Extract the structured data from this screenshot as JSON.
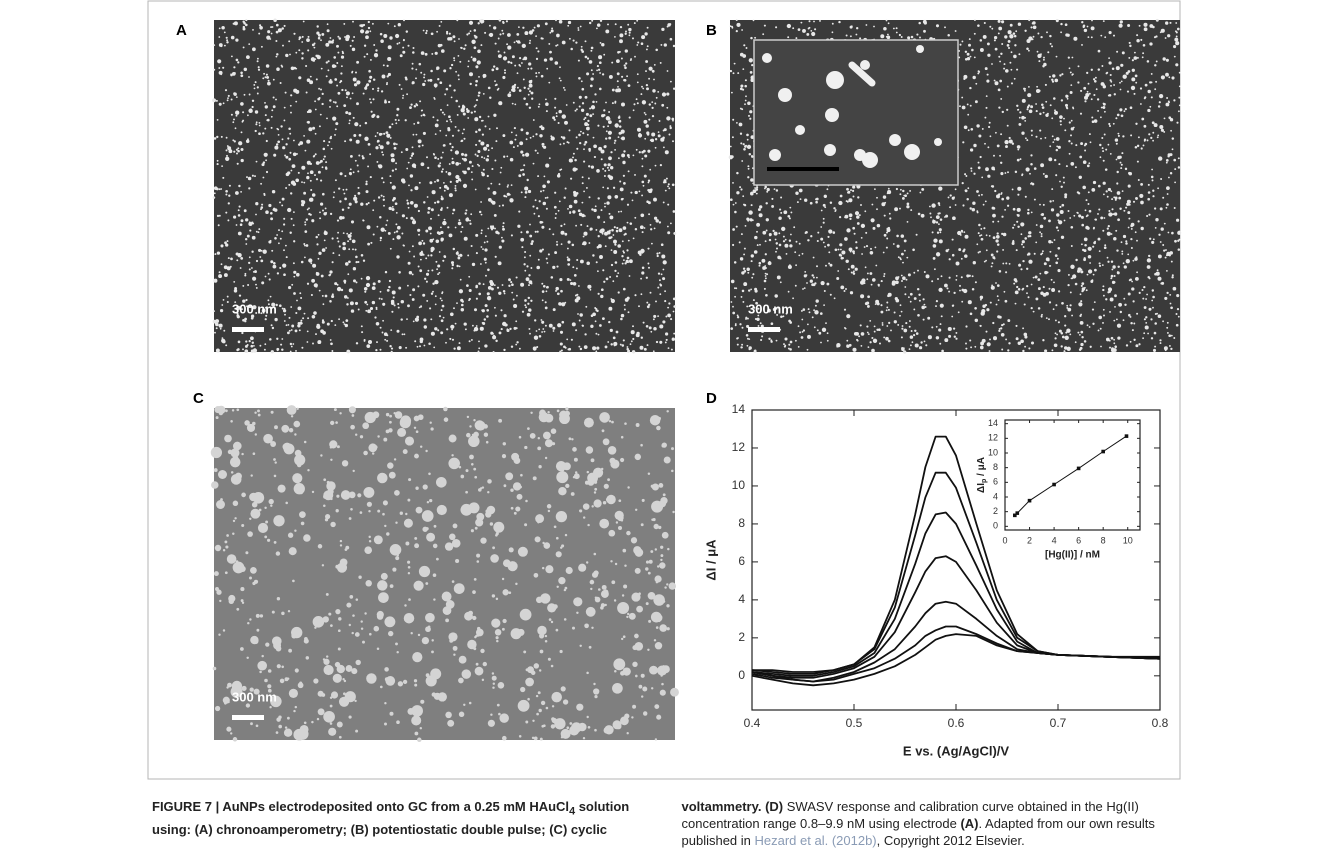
{
  "figure": {
    "panels": {
      "A": {
        "label": "A",
        "scale_label": "300 nm"
      },
      "B": {
        "label": "B",
        "scale_label": "300 nm"
      },
      "C": {
        "label": "C",
        "scale_label": "300 nm"
      },
      "D": {
        "label": "D"
      }
    }
  },
  "chart_data": [
    {
      "type": "line",
      "xlabel": "E vs. (Ag/AgCl)/V",
      "ylabel": "ΔI / μA",
      "x": [
        0.4,
        0.42,
        0.44,
        0.46,
        0.48,
        0.5,
        0.52,
        0.54,
        0.56,
        0.57,
        0.58,
        0.59,
        0.6,
        0.62,
        0.64,
        0.66,
        0.68,
        0.7,
        0.75,
        0.8
      ],
      "xlim": [
        0.4,
        0.8
      ],
      "xticks": [
        0.4,
        0.5,
        0.6,
        0.7,
        0.8
      ],
      "ylim": [
        -1.8,
        14
      ],
      "yticks": [
        0,
        2,
        4,
        6,
        8,
        10,
        12,
        14
      ],
      "grid": false,
      "series": [
        {
          "color": "#111111",
          "values": [
            0.3,
            0.3,
            0.2,
            0.2,
            0.3,
            0.6,
            1.5,
            4.0,
            8.5,
            11.0,
            12.6,
            12.6,
            11.6,
            8.0,
            4.5,
            2.2,
            1.3,
            1.1,
            1.0,
            0.9
          ]
        },
        {
          "color": "#111111",
          "values": [
            0.3,
            0.2,
            0.1,
            0.1,
            0.3,
            0.6,
            1.4,
            3.6,
            7.4,
            9.4,
            10.7,
            10.7,
            9.9,
            7.0,
            4.0,
            2.0,
            1.3,
            1.1,
            1.0,
            0.9
          ]
        },
        {
          "color": "#111111",
          "values": [
            0.2,
            0.1,
            0,
            0,
            0.2,
            0.5,
            1.2,
            3.0,
            5.9,
            7.5,
            8.5,
            8.6,
            8.0,
            5.8,
            3.5,
            1.8,
            1.2,
            1.1,
            1.0,
            0.9
          ]
        },
        {
          "color": "#111111",
          "values": [
            0.2,
            0,
            -0.1,
            -0.1,
            0.1,
            0.4,
            1.0,
            2.3,
            4.4,
            5.5,
            6.2,
            6.3,
            6.0,
            4.5,
            2.8,
            1.6,
            1.2,
            1.1,
            1.0,
            0.9
          ]
        },
        {
          "color": "#111111",
          "values": [
            0.1,
            -0.1,
            -0.2,
            -0.3,
            -0.1,
            0.2,
            0.7,
            1.4,
            2.6,
            3.3,
            3.8,
            3.9,
            3.8,
            3.0,
            2.1,
            1.4,
            1.2,
            1.1,
            1.0,
            0.9
          ]
        },
        {
          "color": "#111111",
          "values": [
            0.2,
            0,
            -0.2,
            -0.3,
            -0.2,
            0.1,
            0.4,
            0.9,
            1.6,
            2.1,
            2.4,
            2.6,
            2.6,
            2.2,
            1.7,
            1.3,
            1.2,
            1.1,
            1.0,
            0.9
          ]
        },
        {
          "color": "#111111",
          "values": [
            0,
            -0.2,
            -0.4,
            -0.5,
            -0.4,
            -0.2,
            0.1,
            0.5,
            1.1,
            1.5,
            1.9,
            2.1,
            2.2,
            2.1,
            1.6,
            1.3,
            1.2,
            1.1,
            1.0,
            1.0
          ]
        }
      ]
    },
    {
      "type": "scatter",
      "xlabel": "[Hg(II)] / nM",
      "ylabel_main": "ΔI",
      "ylabel_sub": "p",
      "ylabel_unit": " / μA",
      "x": [
        0.8,
        1,
        2,
        4,
        6,
        8,
        9.9
      ],
      "values": [
        1.5,
        1.8,
        3.5,
        5.7,
        7.9,
        10.2,
        12.3
      ],
      "color": "#111111",
      "xlim": [
        0,
        11
      ],
      "xticks": [
        0,
        2,
        4,
        6,
        8,
        10
      ],
      "ylim": [
        -0.5,
        14.5
      ],
      "yticks": [
        0,
        2,
        4,
        6,
        8,
        10,
        12,
        14
      ],
      "grid": false
    }
  ],
  "caption": {
    "bold_1": "FIGURE 7 | AuNPs electrodeposited onto GC from a 0.25 mM HAuCl",
    "bold_sub": "4",
    "bold_2": " solution using: (A) chronoamperometry; (B) potentiostatic double pulse; (C) cyclic voltammetry. (D)",
    "text_1": " SWASV response and calibration curve obtained in the Hg(II) concentration range 0.8–9.9 nM using electrode ",
    "bold_3": "(A)",
    "text_2": ". Adapted from our own results published in ",
    "link": "Hezard et al. (2012b)",
    "text_3": ", Copyright 2012 Elsevier."
  }
}
